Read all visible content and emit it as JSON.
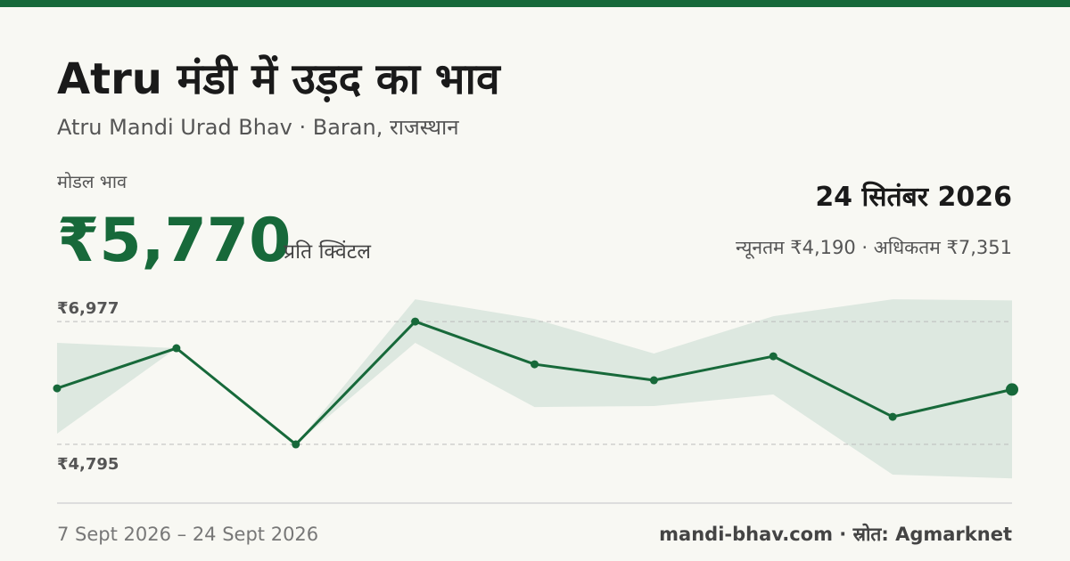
{
  "header": {
    "title": "Atru मंडी में उड़द का भाव",
    "subtitle": "Atru Mandi Urad Bhav · Baran, राजस्थान"
  },
  "summary": {
    "modal_label": "मोडल भाव",
    "modal_price": "₹5,770",
    "unit": "प्रति क्विंटल",
    "date": "24 सितंबर 2026",
    "range_text": "न्यूनतम ₹4,190 · अधिकतम ₹7,351"
  },
  "chart_data": {
    "type": "line",
    "categories": [
      null,
      null,
      null,
      null,
      null,
      null,
      null,
      null,
      null
    ],
    "values": [
      5791,
      6503,
      4795,
      6977,
      6218,
      5934,
      6360,
      5285,
      5770
    ],
    "band": {
      "low": [
        4985,
        6503,
        4795,
        6598,
        5459,
        5475,
        5681,
        4258,
        4190
      ],
      "high": [
        6598,
        6503,
        4795,
        7372,
        7024,
        6408,
        7072,
        7372,
        7351
      ]
    },
    "color": "#17693a",
    "band_color": "#dde8e0",
    "ylim": [
      4100,
      7500
    ],
    "yticks": [
      {
        "value": 6977,
        "label": "₹6,977"
      },
      {
        "value": 4795,
        "label": "₹4,795"
      }
    ],
    "grid": true
  },
  "footer": {
    "date_range": "7 Sept 2026 – 24 Sept 2026",
    "source": "mandi-bhav.com · स्रोत: Agmarknet"
  }
}
